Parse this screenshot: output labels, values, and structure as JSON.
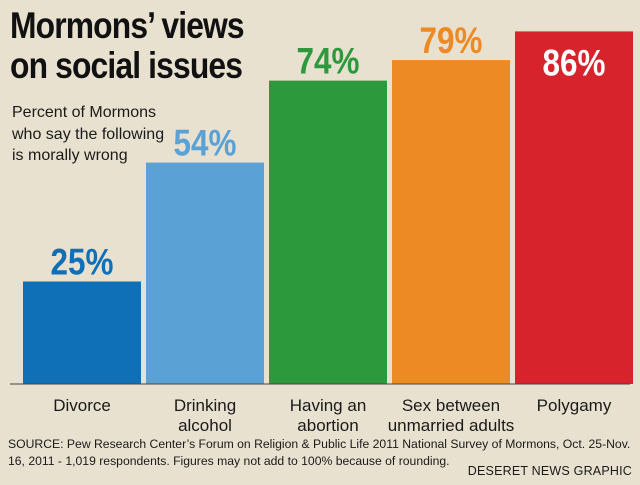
{
  "title_lines": [
    "Mormons’ views",
    "on social issues"
  ],
  "subtitle": "Percent of Mormons who say the following is morally wrong",
  "source": "SOURCE: Pew Research Center’s Forum on Religion & Public Life 2011 National Survey of Mormons, Oct. 25-Nov. 16, 2011 - 1,019 respondents. Figures may not add to 100% because of rounding.",
  "credit": "DESERET NEWS GRAPHIC",
  "chart_data": {
    "type": "bar",
    "title": "Mormons’ views on social issues",
    "subtitle": "Percent of Mormons who say the following is morally wrong",
    "categories": [
      [
        "Divorce"
      ],
      [
        "Drinking",
        "alcohol"
      ],
      [
        "Having an",
        "abortion"
      ],
      [
        "Sex between",
        "unmarried adults"
      ],
      [
        "Polygamy"
      ]
    ],
    "values": [
      25,
      54,
      74,
      79,
      86
    ],
    "value_labels": [
      "25%",
      "54%",
      "74%",
      "79%",
      "86%"
    ],
    "colors": [
      "#0f70b7",
      "#5aa1d6",
      "#2c9a3c",
      "#ee8a24",
      "#d7242c"
    ],
    "unit": "%",
    "ylim": [
      0,
      100
    ],
    "grid": false,
    "legend": "none"
  }
}
